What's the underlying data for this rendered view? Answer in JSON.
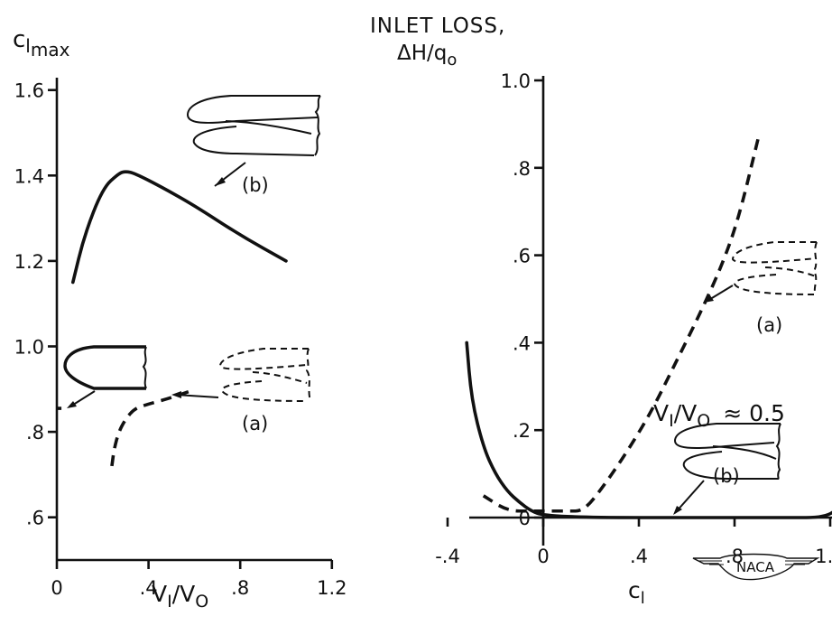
{
  "chart_data": [
    {
      "type": "line",
      "ylabel": "c",
      "ylabel_sub": "l",
      "ylabel_subsub": "max",
      "xlabel_main": "V",
      "xlabel_sub1": "I",
      "xlabel_slash": "/V",
      "xlabel_sub2": "O",
      "xlim": [
        0,
        1.2
      ],
      "ylim": [
        0.5,
        1.6
      ],
      "xticks": [
        0,
        0.4,
        0.8,
        1.2
      ],
      "xtick_labels": [
        "0",
        ".4",
        ".8",
        "1.2"
      ],
      "yticks": [
        0.6,
        0.8,
        1.0,
        1.2,
        1.4,
        1.6
      ],
      "ytick_labels": [
        ".6",
        ".8",
        "1.0",
        "1.2",
        "1.4",
        "1.6"
      ],
      "grid": false,
      "series": [
        {
          "name": "(b)",
          "style": "solid",
          "x": [
            0.07,
            0.12,
            0.2,
            0.27,
            0.3,
            0.34,
            0.45,
            0.6,
            0.8,
            1.0
          ],
          "y": [
            1.15,
            1.26,
            1.37,
            1.405,
            1.41,
            1.405,
            1.375,
            1.33,
            1.26,
            1.2
          ]
        },
        {
          "name": "(a)",
          "style": "dashed",
          "x": [
            0.24,
            0.25,
            0.27,
            0.3,
            0.34,
            0.4,
            0.5,
            0.58
          ],
          "y": [
            0.72,
            0.76,
            0.8,
            0.83,
            0.855,
            0.865,
            0.88,
            0.895
          ]
        },
        {
          "name": "(a) at V_I/V_O = 0",
          "style": "dashed",
          "x": [
            0,
            0.02
          ],
          "y": [
            0.855,
            0.855
          ]
        }
      ],
      "annotations": [
        "(b)",
        "(a)"
      ]
    },
    {
      "type": "line",
      "title_line1": "INLET LOSS,",
      "title_line2": "ΔH/q",
      "title_sub": "o",
      "xlabel": "c",
      "xlabel_sub": "l",
      "xlim": [
        -0.45,
        1.3
      ],
      "ylim": [
        -0.1,
        1.0
      ],
      "xticks": [
        -0.4,
        0,
        0.4,
        0.8,
        1.2
      ],
      "xtick_labels": [
        "-.4",
        "0",
        ".4",
        ".8",
        "1.2"
      ],
      "yticks": [
        0,
        0.2,
        0.4,
        0.6,
        0.8,
        1.0
      ],
      "ytick_labels": [
        "0",
        ".2",
        ".4",
        ".6",
        ".8",
        "1.0"
      ],
      "grid": false,
      "series": [
        {
          "name": "(b)",
          "style": "solid",
          "x": [
            -0.32,
            -0.3,
            -0.25,
            -0.2,
            -0.15,
            -0.1,
            -0.05,
            0,
            0.2,
            0.6,
            1.0,
            1.2,
            1.25,
            1.3
          ],
          "y": [
            0.4,
            0.27,
            0.16,
            0.1,
            0.06,
            0.035,
            0.015,
            0.005,
            0,
            0,
            0,
            0,
            0.04,
            0.065
          ]
        },
        {
          "name": "(a)",
          "style": "dashed",
          "x": [
            -0.25,
            -0.15,
            -0.05,
            0,
            0.1,
            0.17,
            0.25,
            0.35,
            0.45,
            0.55,
            0.65,
            0.75,
            0.82,
            0.9
          ],
          "y": [
            0.05,
            0.015,
            0.015,
            0.015,
            0.015,
            0.015,
            0.07,
            0.15,
            0.24,
            0.35,
            0.46,
            0.58,
            0.69,
            0.87
          ]
        }
      ],
      "annotations": [
        "(a)",
        "(b)"
      ],
      "label_main": "V",
      "label_sub1": "I",
      "label_slash": "/V",
      "label_sub2": "O",
      "label_approx": "≈ 0.5",
      "logo": "NACA"
    }
  ]
}
